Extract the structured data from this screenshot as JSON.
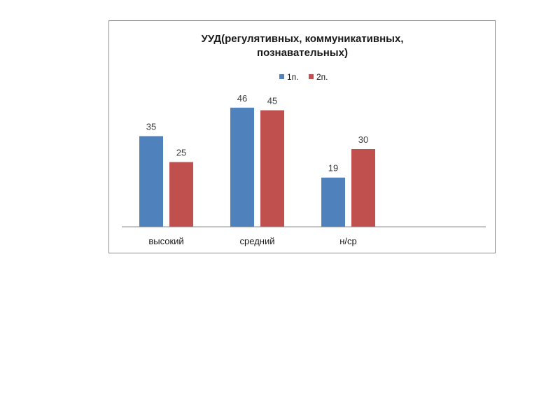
{
  "chart_data": {
    "type": "bar",
    "title_lines": [
      "УУД(регулятивных, коммуникативных,",
      "познавательных)"
    ],
    "categories": [
      "высокий",
      "средний",
      "н/ср"
    ],
    "series": [
      {
        "name": "1п.",
        "values": [
          35,
          46,
          19
        ],
        "color": "#4f81bd"
      },
      {
        "name": "2п.",
        "values": [
          25,
          45,
          30
        ],
        "color": "#c0504d"
      }
    ],
    "ylim": [
      0,
      50
    ],
    "legend_position": "top",
    "grid": false,
    "xlabel": "",
    "ylabel": ""
  }
}
